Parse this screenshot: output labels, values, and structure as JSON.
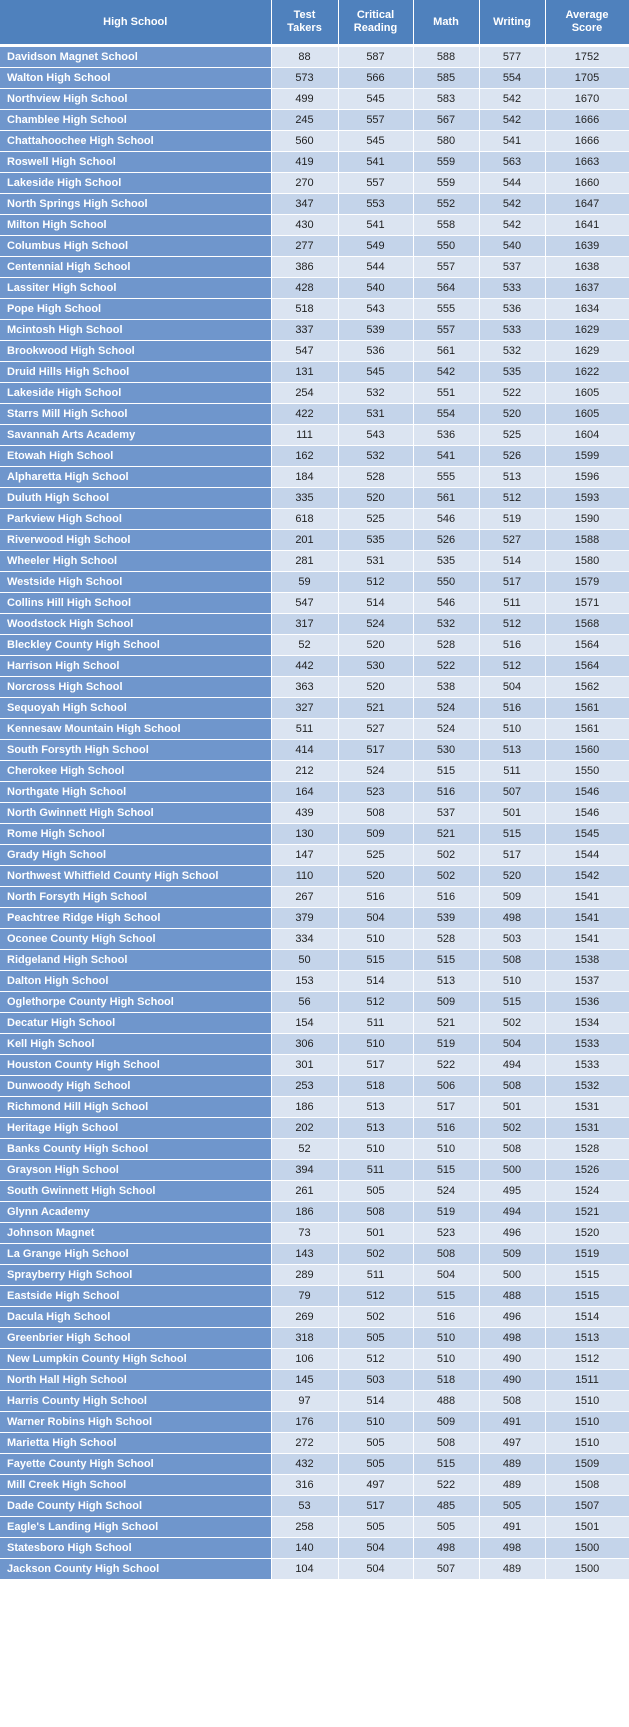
{
  "table": {
    "columns": [
      "High School",
      "Test\nTakers",
      "Critical\nReading",
      "Math",
      "Writing",
      "Average\nScore"
    ],
    "rows": [
      [
        "Davidson Magnet School",
        "88",
        "587",
        "588",
        "577",
        "1752"
      ],
      [
        "Walton High School",
        "573",
        "566",
        "585",
        "554",
        "1705"
      ],
      [
        "Northview High School",
        "499",
        "545",
        "583",
        "542",
        "1670"
      ],
      [
        "Chamblee High School",
        "245",
        "557",
        "567",
        "542",
        "1666"
      ],
      [
        "Chattahoochee High School",
        "560",
        "545",
        "580",
        "541",
        "1666"
      ],
      [
        "Roswell High School",
        "419",
        "541",
        "559",
        "563",
        "1663"
      ],
      [
        "Lakeside High School",
        "270",
        "557",
        "559",
        "544",
        "1660"
      ],
      [
        "North Springs High School",
        "347",
        "553",
        "552",
        "542",
        "1647"
      ],
      [
        "Milton High School",
        "430",
        "541",
        "558",
        "542",
        "1641"
      ],
      [
        "Columbus High School",
        "277",
        "549",
        "550",
        "540",
        "1639"
      ],
      [
        "Centennial High School",
        "386",
        "544",
        "557",
        "537",
        "1638"
      ],
      [
        "Lassiter High School",
        "428",
        "540",
        "564",
        "533",
        "1637"
      ],
      [
        "Pope High School",
        "518",
        "543",
        "555",
        "536",
        "1634"
      ],
      [
        "Mcintosh High School",
        "337",
        "539",
        "557",
        "533",
        "1629"
      ],
      [
        "Brookwood High School",
        "547",
        "536",
        "561",
        "532",
        "1629"
      ],
      [
        "Druid Hills High School",
        "131",
        "545",
        "542",
        "535",
        "1622"
      ],
      [
        "Lakeside High School",
        "254",
        "532",
        "551",
        "522",
        "1605"
      ],
      [
        "Starrs Mill High School",
        "422",
        "531",
        "554",
        "520",
        "1605"
      ],
      [
        "Savannah Arts Academy",
        "111",
        "543",
        "536",
        "525",
        "1604"
      ],
      [
        "Etowah High School",
        "162",
        "532",
        "541",
        "526",
        "1599"
      ],
      [
        "Alpharetta High School",
        "184",
        "528",
        "555",
        "513",
        "1596"
      ],
      [
        "Duluth High School",
        "335",
        "520",
        "561",
        "512",
        "1593"
      ],
      [
        "Parkview High School",
        "618",
        "525",
        "546",
        "519",
        "1590"
      ],
      [
        "Riverwood High School",
        "201",
        "535",
        "526",
        "527",
        "1588"
      ],
      [
        "Wheeler High School",
        "281",
        "531",
        "535",
        "514",
        "1580"
      ],
      [
        "Westside High School",
        "59",
        "512",
        "550",
        "517",
        "1579"
      ],
      [
        "Collins Hill High School",
        "547",
        "514",
        "546",
        "511",
        "1571"
      ],
      [
        "Woodstock High School",
        "317",
        "524",
        "532",
        "512",
        "1568"
      ],
      [
        "Bleckley County High School",
        "52",
        "520",
        "528",
        "516",
        "1564"
      ],
      [
        "Harrison High School",
        "442",
        "530",
        "522",
        "512",
        "1564"
      ],
      [
        "Norcross High School",
        "363",
        "520",
        "538",
        "504",
        "1562"
      ],
      [
        "Sequoyah High School",
        "327",
        "521",
        "524",
        "516",
        "1561"
      ],
      [
        "Kennesaw Mountain High School",
        "511",
        "527",
        "524",
        "510",
        "1561"
      ],
      [
        "South Forsyth High School",
        "414",
        "517",
        "530",
        "513",
        "1560"
      ],
      [
        "Cherokee High School",
        "212",
        "524",
        "515",
        "511",
        "1550"
      ],
      [
        "Northgate High School",
        "164",
        "523",
        "516",
        "507",
        "1546"
      ],
      [
        "North Gwinnett High School",
        "439",
        "508",
        "537",
        "501",
        "1546"
      ],
      [
        "Rome High School",
        "130",
        "509",
        "521",
        "515",
        "1545"
      ],
      [
        "Grady High School",
        "147",
        "525",
        "502",
        "517",
        "1544"
      ],
      [
        "Northwest Whitfield County High School",
        "110",
        "520",
        "502",
        "520",
        "1542"
      ],
      [
        "North Forsyth High School",
        "267",
        "516",
        "516",
        "509",
        "1541"
      ],
      [
        "Peachtree Ridge High School",
        "379",
        "504",
        "539",
        "498",
        "1541"
      ],
      [
        "Oconee County High School",
        "334",
        "510",
        "528",
        "503",
        "1541"
      ],
      [
        "Ridgeland High School",
        "50",
        "515",
        "515",
        "508",
        "1538"
      ],
      [
        "Dalton High School",
        "153",
        "514",
        "513",
        "510",
        "1537"
      ],
      [
        "Oglethorpe County High School",
        "56",
        "512",
        "509",
        "515",
        "1536"
      ],
      [
        "Decatur High School",
        "154",
        "511",
        "521",
        "502",
        "1534"
      ],
      [
        "Kell High School",
        "306",
        "510",
        "519",
        "504",
        "1533"
      ],
      [
        "Houston County High School",
        "301",
        "517",
        "522",
        "494",
        "1533"
      ],
      [
        "Dunwoody High School",
        "253",
        "518",
        "506",
        "508",
        "1532"
      ],
      [
        "Richmond Hill High School",
        "186",
        "513",
        "517",
        "501",
        "1531"
      ],
      [
        "Heritage High School",
        "202",
        "513",
        "516",
        "502",
        "1531"
      ],
      [
        "Banks County High School",
        "52",
        "510",
        "510",
        "508",
        "1528"
      ],
      [
        "Grayson High School",
        "394",
        "511",
        "515",
        "500",
        "1526"
      ],
      [
        "South Gwinnett High School",
        "261",
        "505",
        "524",
        "495",
        "1524"
      ],
      [
        "Glynn Academy",
        "186",
        "508",
        "519",
        "494",
        "1521"
      ],
      [
        "Johnson Magnet",
        "73",
        "501",
        "523",
        "496",
        "1520"
      ],
      [
        "La Grange High School",
        "143",
        "502",
        "508",
        "509",
        "1519"
      ],
      [
        "Sprayberry High School",
        "289",
        "511",
        "504",
        "500",
        "1515"
      ],
      [
        "Eastside High School",
        "79",
        "512",
        "515",
        "488",
        "1515"
      ],
      [
        "Dacula High School",
        "269",
        "502",
        "516",
        "496",
        "1514"
      ],
      [
        "Greenbrier High School",
        "318",
        "505",
        "510",
        "498",
        "1513"
      ],
      [
        "New Lumpkin County High School",
        "106",
        "512",
        "510",
        "490",
        "1512"
      ],
      [
        "North Hall High School",
        "145",
        "503",
        "518",
        "490",
        "1511"
      ],
      [
        "Harris County High School",
        "97",
        "514",
        "488",
        "508",
        "1510"
      ],
      [
        "Warner Robins High School",
        "176",
        "510",
        "509",
        "491",
        "1510"
      ],
      [
        "Marietta High School",
        "272",
        "505",
        "508",
        "497",
        "1510"
      ],
      [
        "Fayette County High School",
        "432",
        "505",
        "515",
        "489",
        "1509"
      ],
      [
        "Mill Creek High School",
        "316",
        "497",
        "522",
        "489",
        "1508"
      ],
      [
        "Dade County High School",
        "53",
        "517",
        "485",
        "505",
        "1507"
      ],
      [
        "Eagle's Landing High School",
        "258",
        "505",
        "505",
        "491",
        "1501"
      ],
      [
        "Statesboro High School",
        "140",
        "504",
        "498",
        "498",
        "1500"
      ],
      [
        "Jackson County High School",
        "104",
        "504",
        "507",
        "489",
        "1500"
      ]
    ]
  }
}
